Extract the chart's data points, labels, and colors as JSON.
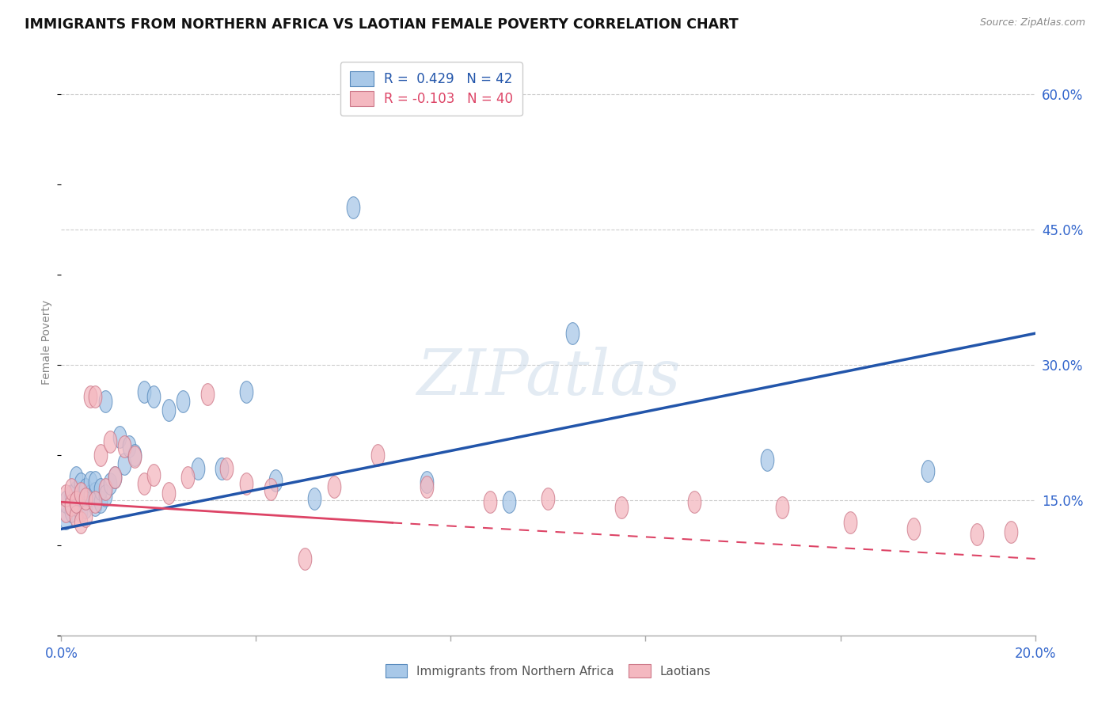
{
  "title": "IMMIGRANTS FROM NORTHERN AFRICA VS LAOTIAN FEMALE POVERTY CORRELATION CHART",
  "source": "Source: ZipAtlas.com",
  "ylabel": "Female Poverty",
  "xlim": [
    0.0,
    0.2
  ],
  "ylim": [
    0.0,
    0.65
  ],
  "xticks": [
    0.0,
    0.04,
    0.08,
    0.12,
    0.16,
    0.2
  ],
  "xticklabels": [
    "0.0%",
    "",
    "",
    "",
    "",
    "20.0%"
  ],
  "yticks_right": [
    0.15,
    0.3,
    0.45,
    0.6
  ],
  "ytick_labels_right": [
    "15.0%",
    "30.0%",
    "45.0%",
    "60.0%"
  ],
  "legend_r1": "R =  0.429",
  "legend_n1": "N = 42",
  "legend_r2": "R = -0.103",
  "legend_n2": "N = 40",
  "blue_color": "#a8c8e8",
  "pink_color": "#f4b8c0",
  "blue_edge_color": "#5588bb",
  "pink_edge_color": "#cc7788",
  "blue_line_color": "#2255aa",
  "pink_line_color": "#dd4466",
  "axis_label_color": "#3366cc",
  "watermark": "ZIPatlas",
  "blue_scatter_x": [
    0.001,
    0.001,
    0.002,
    0.002,
    0.003,
    0.003,
    0.003,
    0.004,
    0.004,
    0.004,
    0.005,
    0.005,
    0.006,
    0.006,
    0.007,
    0.007,
    0.007,
    0.008,
    0.008,
    0.009,
    0.009,
    0.01,
    0.011,
    0.012,
    0.013,
    0.014,
    0.015,
    0.017,
    0.019,
    0.022,
    0.025,
    0.028,
    0.033,
    0.038,
    0.044,
    0.052,
    0.06,
    0.075,
    0.092,
    0.105,
    0.145,
    0.178
  ],
  "blue_scatter_y": [
    0.13,
    0.148,
    0.138,
    0.155,
    0.145,
    0.16,
    0.175,
    0.138,
    0.152,
    0.168,
    0.142,
    0.162,
    0.155,
    0.17,
    0.145,
    0.158,
    0.17,
    0.148,
    0.162,
    0.155,
    0.26,
    0.168,
    0.175,
    0.22,
    0.19,
    0.21,
    0.2,
    0.27,
    0.265,
    0.25,
    0.26,
    0.185,
    0.185,
    0.27,
    0.172,
    0.152,
    0.475,
    0.17,
    0.148,
    0.335,
    0.195,
    0.182
  ],
  "pink_scatter_x": [
    0.001,
    0.001,
    0.002,
    0.002,
    0.003,
    0.003,
    0.004,
    0.004,
    0.005,
    0.005,
    0.006,
    0.007,
    0.007,
    0.008,
    0.009,
    0.01,
    0.011,
    0.013,
    0.015,
    0.017,
    0.019,
    0.022,
    0.026,
    0.03,
    0.034,
    0.038,
    0.043,
    0.05,
    0.056,
    0.065,
    0.075,
    0.088,
    0.1,
    0.115,
    0.13,
    0.148,
    0.162,
    0.175,
    0.188,
    0.195
  ],
  "pink_scatter_y": [
    0.138,
    0.155,
    0.145,
    0.162,
    0.132,
    0.148,
    0.125,
    0.158,
    0.132,
    0.152,
    0.265,
    0.265,
    0.148,
    0.2,
    0.162,
    0.215,
    0.175,
    0.21,
    0.198,
    0.168,
    0.178,
    0.158,
    0.175,
    0.268,
    0.185,
    0.168,
    0.162,
    0.085,
    0.165,
    0.2,
    0.165,
    0.148,
    0.152,
    0.142,
    0.148,
    0.142,
    0.125,
    0.118,
    0.112,
    0.115
  ],
  "blue_trend": [
    0.0,
    0.2,
    0.118,
    0.335
  ],
  "pink_solid_trend": [
    0.0,
    0.068,
    0.148,
    0.125
  ],
  "pink_dash_trend": [
    0.068,
    0.2,
    0.125,
    0.085
  ]
}
